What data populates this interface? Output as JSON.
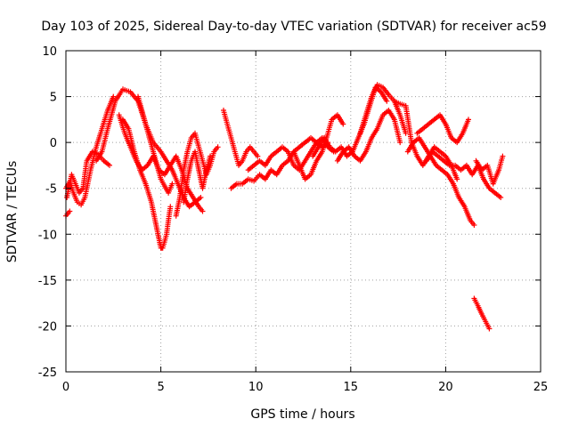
{
  "chart_data": {
    "type": "scatter",
    "title": "Day 103 of 2025, Sidereal Day-to-day VTEC variation (SDTVAR) for receiver ac59",
    "xlabel": "GPS time / hours",
    "ylabel": "SDTVAR / TECUs",
    "xlim": [
      0,
      25
    ],
    "ylim": [
      -25,
      10
    ],
    "xticks": [
      0,
      5,
      10,
      15,
      20,
      25
    ],
    "yticks": [
      -25,
      -20,
      -15,
      -10,
      -5,
      0,
      5,
      10
    ],
    "grid": true,
    "marker": "plus",
    "series": [
      {
        "name": "SDTVAR",
        "color": "#ff0000",
        "tracks": [
          {
            "x": [
              0.0,
              0.2,
              0.4,
              0.6,
              0.8,
              1.0,
              1.3,
              1.6,
              1.9,
              2.2,
              2.5
            ],
            "y": [
              -5.0,
              -4.3,
              -5.5,
              -6.5,
              -6.8,
              -6.0,
              -3.0,
              -0.5,
              1.5,
              3.5,
              5.0
            ]
          },
          {
            "x": [
              0.05,
              0.3,
              0.5,
              0.7,
              0.9,
              1.1,
              1.4,
              1.7,
              2.0,
              2.3
            ],
            "y": [
              -6.0,
              -3.5,
              -4.5,
              -5.5,
              -5.0,
              -2.0,
              -1.0,
              -1.3,
              -2.0,
              -2.5
            ]
          },
          {
            "x": [
              0.0,
              0.2
            ],
            "y": [
              -8.0,
              -7.5
            ]
          },
          {
            "x": [
              1.6,
              1.9,
              2.2,
              2.6,
              3.0,
              3.4,
              3.8,
              4.2,
              4.6,
              5.0,
              5.4,
              5.6
            ],
            "y": [
              -2.0,
              -1.0,
              1.5,
              4.5,
              5.8,
              5.5,
              4.5,
              2.0,
              -1.0,
              -4.0,
              -5.5,
              -4.5
            ]
          },
          {
            "x": [
              2.8,
              3.1,
              3.4,
              3.7,
              4.0,
              4.3,
              4.6,
              4.9,
              5.2,
              5.5,
              5.8,
              6.1,
              6.4,
              6.7,
              7.0,
              7.2
            ],
            "y": [
              3.0,
              1.0,
              -0.5,
              -2.0,
              -3.0,
              -2.5,
              -1.5,
              -3.0,
              -3.5,
              -2.5,
              -1.5,
              -3.0,
              -5.0,
              -6.0,
              -7.0,
              -7.5
            ]
          },
          {
            "x": [
              3.0,
              3.3,
              3.6,
              3.9,
              4.2,
              4.5,
              4.7,
              4.9,
              5.0,
              5.1,
              5.3,
              5.5
            ],
            "y": [
              2.5,
              1.5,
              -1.0,
              -3.0,
              -4.5,
              -6.5,
              -8.5,
              -10.5,
              -11.5,
              -11.5,
              -10.0,
              -7.0
            ]
          },
          {
            "x": [
              3.8,
              4.2,
              4.6,
              5.0,
              5.3,
              5.6,
              5.9,
              6.2,
              6.5,
              6.8,
              7.1
            ],
            "y": [
              5.0,
              2.0,
              0.0,
              -1.0,
              -2.0,
              -3.0,
              -4.5,
              -6.0,
              -7.0,
              -6.5,
              -6.0
            ]
          },
          {
            "x": [
              5.8,
              6.0,
              6.2,
              6.4,
              6.6,
              6.8,
              7.0,
              7.2,
              7.4,
              7.6,
              7.8,
              8.0
            ],
            "y": [
              -8.0,
              -6.0,
              -3.0,
              -1.0,
              0.5,
              1.0,
              -0.5,
              -2.0,
              -3.5,
              -2.5,
              -1.0,
              -0.5
            ]
          },
          {
            "x": [
              6.2,
              6.4,
              6.6,
              6.8,
              7.0,
              7.2,
              7.4,
              7.6
            ],
            "y": [
              -6.5,
              -4.0,
              -2.0,
              -1.0,
              -3.0,
              -5.0,
              -3.0,
              -1.5
            ]
          },
          {
            "x": [
              8.3,
              8.5,
              8.7,
              8.9,
              9.1,
              9.3,
              9.5,
              9.7,
              9.9,
              10.1
            ],
            "y": [
              3.5,
              2.0,
              0.5,
              -1.0,
              -2.5,
              -2.0,
              -1.0,
              -0.5,
              -1.0,
              -1.5
            ]
          },
          {
            "x": [
              8.7,
              9.0,
              9.3,
              9.6,
              9.9,
              10.2,
              10.5,
              10.8,
              11.1,
              11.4,
              11.7,
              12.0,
              12.3,
              12.6,
              12.9,
              13.2,
              13.5,
              13.8
            ],
            "y": [
              -5.0,
              -4.5,
              -4.5,
              -4.0,
              -4.2,
              -3.5,
              -4.0,
              -3.0,
              -3.5,
              -2.5,
              -2.0,
              -1.0,
              -0.5,
              0.0,
              0.5,
              0.0,
              -0.5,
              0.0
            ]
          },
          {
            "x": [
              9.6,
              9.9,
              10.2,
              10.5,
              10.8,
              11.1,
              11.4,
              11.7,
              12.0,
              12.3,
              12.6,
              12.9,
              13.2,
              13.5,
              13.8,
              14.1
            ],
            "y": [
              -3.0,
              -2.5,
              -2.0,
              -2.5,
              -1.5,
              -1.0,
              -0.5,
              -1.0,
              -2.5,
              -3.0,
              -2.0,
              -1.0,
              0.0,
              0.5,
              -0.5,
              -1.0
            ]
          },
          {
            "x": [
              12.0,
              12.3,
              12.6,
              12.9,
              13.2,
              13.5,
              13.8,
              14.0,
              14.3,
              14.6
            ],
            "y": [
              -1.0,
              -2.5,
              -4.0,
              -3.5,
              -2.0,
              -1.0,
              1.0,
              2.5,
              3.0,
              2.0
            ]
          },
          {
            "x": [
              13.0,
              13.3,
              13.6,
              13.9,
              14.2,
              14.5,
              14.8,
              15.1,
              15.4,
              15.7,
              16.0,
              16.3,
              16.6,
              16.9
            ],
            "y": [
              -1.5,
              -0.5,
              0.5,
              -0.5,
              -1.0,
              -0.5,
              -1.5,
              -1.0,
              0.5,
              2.0,
              4.0,
              6.0,
              5.5,
              4.5
            ]
          },
          {
            "x": [
              14.3,
              14.6,
              14.9,
              15.2,
              15.5,
              15.8,
              16.1,
              16.4,
              16.7,
              17.0,
              17.3,
              17.6
            ],
            "y": [
              -2.0,
              -1.0,
              -0.5,
              -1.5,
              -2.0,
              -1.0,
              0.5,
              1.5,
              3.0,
              3.5,
              2.5,
              0.0
            ]
          },
          {
            "x": [
              15.5,
              15.8,
              16.1,
              16.4,
              16.7,
              17.0,
              17.3,
              17.6,
              17.9
            ],
            "y": [
              1.0,
              3.0,
              5.0,
              6.3,
              6.0,
              5.2,
              4.5,
              3.0,
              1.0
            ]
          },
          {
            "x": [
              17.3,
              17.6,
              17.9,
              18.2,
              18.5,
              18.8,
              19.1,
              19.4,
              19.7,
              20.0,
              20.3,
              20.6
            ],
            "y": [
              4.5,
              4.2,
              4.0,
              0.0,
              -1.5,
              -2.5,
              -1.5,
              -0.5,
              -1.0,
              -1.5,
              -2.5,
              -4.0
            ]
          },
          {
            "x": [
              18.0,
              18.3,
              18.6,
              18.9,
              19.2,
              19.5,
              19.8,
              20.1,
              20.4,
              20.7,
              21.0,
              21.3,
              21.5
            ],
            "y": [
              -1.0,
              0.0,
              0.5,
              -0.5,
              -1.5,
              -2.5,
              -3.0,
              -3.5,
              -4.5,
              -6.0,
              -7.0,
              -8.5,
              -9.0
            ]
          },
          {
            "x": [
              18.5,
              18.8,
              19.1,
              19.4,
              19.7,
              20.0,
              20.3,
              20.6,
              20.9,
              21.2
            ],
            "y": [
              1.0,
              1.5,
              2.0,
              2.5,
              3.0,
              2.0,
              0.5,
              0.0,
              1.0,
              2.5
            ]
          },
          {
            "x": [
              19.0,
              19.3,
              19.6,
              19.9,
              20.2,
              20.5,
              20.8,
              21.1,
              21.4,
              21.7,
              22.0,
              22.3,
              22.6,
              22.9
            ],
            "y": [
              -2.0,
              -1.0,
              -1.5,
              -2.0,
              -2.5,
              -2.5,
              -3.0,
              -2.5,
              -3.5,
              -2.5,
              -4.0,
              -5.0,
              -5.5,
              -6.0
            ]
          },
          {
            "x": [
              21.6,
              21.9,
              22.2,
              22.5,
              22.8,
              23.0
            ],
            "y": [
              -2.0,
              -3.0,
              -2.5,
              -4.5,
              -3.0,
              -1.5
            ]
          },
          {
            "x": [
              21.5,
              21.7,
              21.9,
              22.1,
              22.3
            ],
            "y": [
              -17.0,
              -17.8,
              -18.7,
              -19.5,
              -20.3
            ]
          }
        ]
      }
    ]
  }
}
